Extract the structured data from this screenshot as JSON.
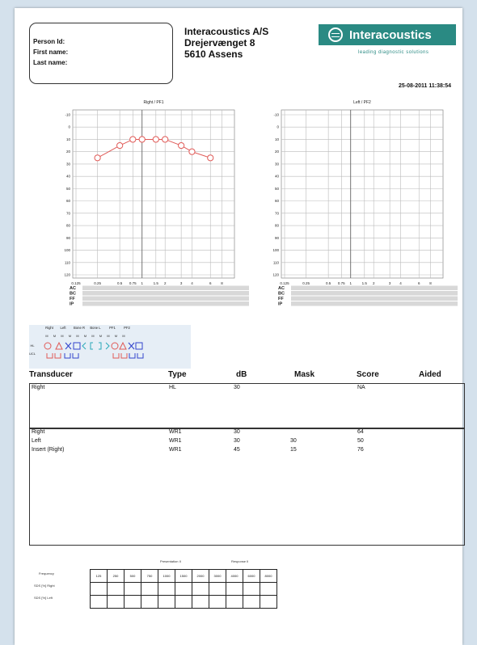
{
  "patient": {
    "person_id_label": "Person Id:",
    "first_name_label": "First name:",
    "last_name_label": "Last name:"
  },
  "clinic": {
    "name": "Interacoustics A/S",
    "street": "Drejervænget 8",
    "city": "5610 Assens"
  },
  "logo": {
    "name": "Interacoustics",
    "tagline": "leading diagnostic solutions",
    "color": "#2a8a83",
    "icon": "interacoustics-emblem-icon"
  },
  "datetime": "25-08-2011 11:38:54",
  "audiograms": [
    {
      "title": "Right / PF1",
      "freq_labels": [
        "0.125",
        "0.25",
        "0.5",
        "0.75",
        "1",
        "1.5",
        "2",
        "3",
        "4",
        "6",
        "8"
      ],
      "db_labels": [
        "-10",
        "0",
        "10",
        "20",
        "30",
        "40",
        "50",
        "60",
        "70",
        "80",
        "90",
        "100",
        "110",
        "120"
      ],
      "rows": [
        "AC",
        "BC",
        "FF",
        "IP"
      ],
      "series_color": "#e05a57",
      "points": [
        {
          "freq": "0.25",
          "db": 25
        },
        {
          "freq": "0.5",
          "db": 15
        },
        {
          "freq": "0.75",
          "db": 10
        },
        {
          "freq": "1",
          "db": 10
        },
        {
          "freq": "1.5",
          "db": 10
        },
        {
          "freq": "2",
          "db": 10
        },
        {
          "freq": "3",
          "db": 15
        },
        {
          "freq": "4",
          "db": 20
        },
        {
          "freq": "6",
          "db": 25
        }
      ]
    },
    {
      "title": "Left / PF2",
      "freq_labels": [
        "0.125",
        "0.25",
        "0.5",
        "0.75",
        "1",
        "1.5",
        "2",
        "3",
        "4",
        "6",
        "8"
      ],
      "db_labels": [
        "-10",
        "0",
        "10",
        "20",
        "30",
        "40",
        "50",
        "60",
        "70",
        "80",
        "90",
        "100",
        "110",
        "120"
      ],
      "rows": [
        "AC",
        "BC",
        "FF",
        "IP"
      ],
      "series_color": "#3344cc",
      "points": []
    }
  ],
  "legend": {
    "headers": [
      "Right",
      "Left",
      "Bone R",
      "Bone L",
      "PF1",
      "PF2"
    ],
    "sub_header": "M",
    "row_labels": [
      "HL",
      "UCL"
    ],
    "right_color": "#e05a57",
    "left_color": "#3344cc",
    "bone_color": "#2aa8b8"
  },
  "results": {
    "columns": [
      "Transducer",
      "Type",
      "dB",
      "Mask",
      "Score",
      "Aided"
    ],
    "section1": [
      {
        "transducer": "Right",
        "type": "HL",
        "db": "30",
        "mask": "",
        "score": "NA",
        "aided": ""
      }
    ],
    "section2": [
      {
        "transducer": "Right",
        "type": "WR1",
        "db": "30",
        "mask": "",
        "score": "64",
        "aided": ""
      },
      {
        "transducer": "Left",
        "type": "WR1",
        "db": "30",
        "mask": "30",
        "score": "50",
        "aided": ""
      },
      {
        "transducer": "Insert (Right)",
        "type": "WR1",
        "db": "45",
        "mask": "15",
        "score": "76",
        "aided": ""
      }
    ]
  },
  "sds": {
    "presentation_label": "Presentation II",
    "response_label": "Response II",
    "row_labels": [
      "Frequency",
      "SDS [%] Right",
      "SDS [%] Left"
    ],
    "frequencies": [
      "125",
      "250",
      "500",
      "750",
      "1000",
      "1500",
      "2000",
      "3000",
      "4000",
      "6000",
      "8000"
    ]
  }
}
